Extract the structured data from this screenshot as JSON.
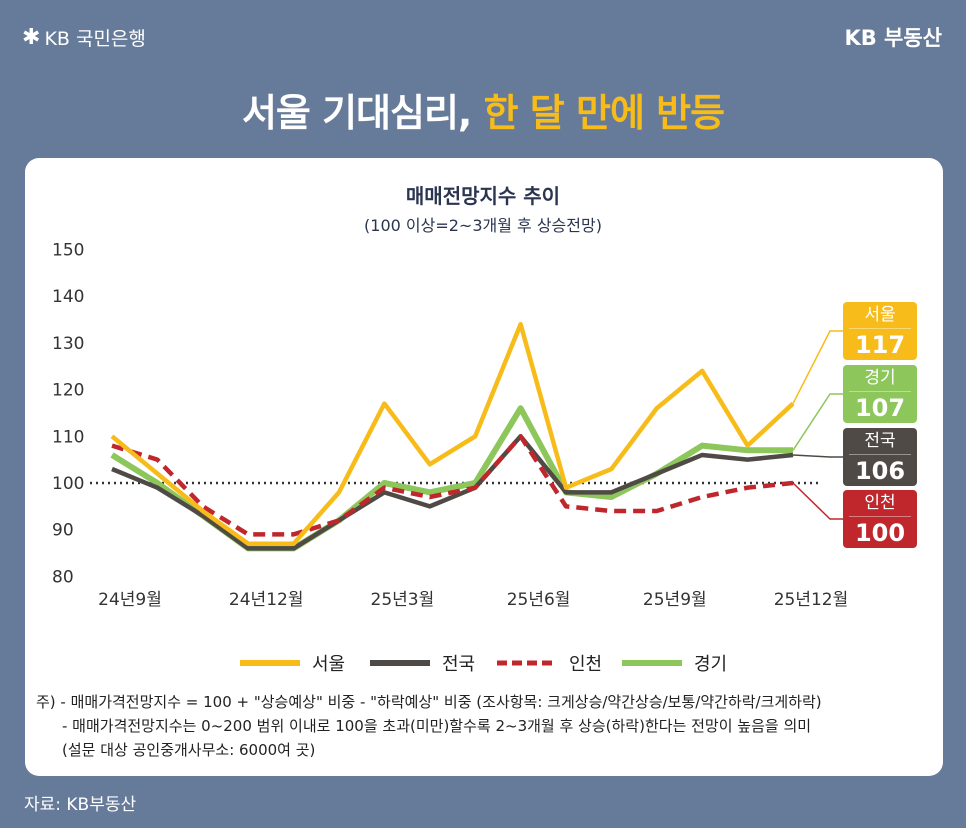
{
  "header": {
    "bank_logo": "KB 국민은행",
    "brand": "KB 부동산",
    "headline_white": "서울 기대심리,",
    "headline_highlight": "한 달 만에 반등"
  },
  "colors": {
    "background": "#667a99",
    "highlight": "#f7bc1a",
    "seoul": "#f7bc1a",
    "national": "#4f4a45",
    "incheon": "#c0272d",
    "gyeonggi": "#8dc65a"
  },
  "chart_data": {
    "type": "line",
    "title": "매매전망지수 추이",
    "subtitle": "(100 이상=2~3개월 후 상승전망)",
    "ylim": [
      80,
      150
    ],
    "yticks": [
      "150",
      "140",
      "130",
      "120",
      "110",
      "100",
      "90",
      "80"
    ],
    "xtick_labels": [
      "24년9월",
      "24년12월",
      "25년3월",
      "25년6월",
      "25년9월",
      "25년12월"
    ],
    "reference_line": 100,
    "series": [
      {
        "name": "서울",
        "key": "seoul",
        "style": "solid",
        "values": [
          110,
          102,
          94,
          87,
          87,
          98,
          117,
          104,
          110,
          134,
          99,
          103,
          116,
          124,
          108,
          117
        ],
        "last_label": "117"
      },
      {
        "name": "전국",
        "key": "national",
        "style": "solid",
        "values": [
          103,
          99,
          93,
          86,
          86,
          92,
          98,
          95,
          99,
          110,
          98,
          98,
          102,
          106,
          105,
          106
        ],
        "last_label": "106"
      },
      {
        "name": "인천",
        "key": "incheon",
        "style": "dashed",
        "values": [
          108,
          105,
          95,
          89,
          89,
          92,
          99,
          97,
          99,
          110,
          95,
          94,
          94,
          97,
          99,
          100
        ],
        "last_label": "100"
      },
      {
        "name": "경기",
        "key": "gyeonggi",
        "style": "solid",
        "values": [
          106,
          100,
          93,
          86,
          86,
          92,
          100,
          98,
          100,
          116,
          98,
          97,
          102,
          108,
          107,
          107
        ],
        "last_label": "107"
      }
    ]
  },
  "notes": [
    "주) - 매매가격전망지수 = 100 + \"상승예상\" 비중 - \"하락예상\" 비중 (조사항목: 크게상승/약간상승/보통/약간하락/크게하락)",
    "- 매매가격전망지수는 0~200 범위 이내로 100을 초과(미만)할수록 2~3개월 후 상승(하락)한다는 전망이 높음을 의미",
    "(설문 대상 공인중개사무소: 6000여 곳)"
  ],
  "source": "자료: KB부동산"
}
